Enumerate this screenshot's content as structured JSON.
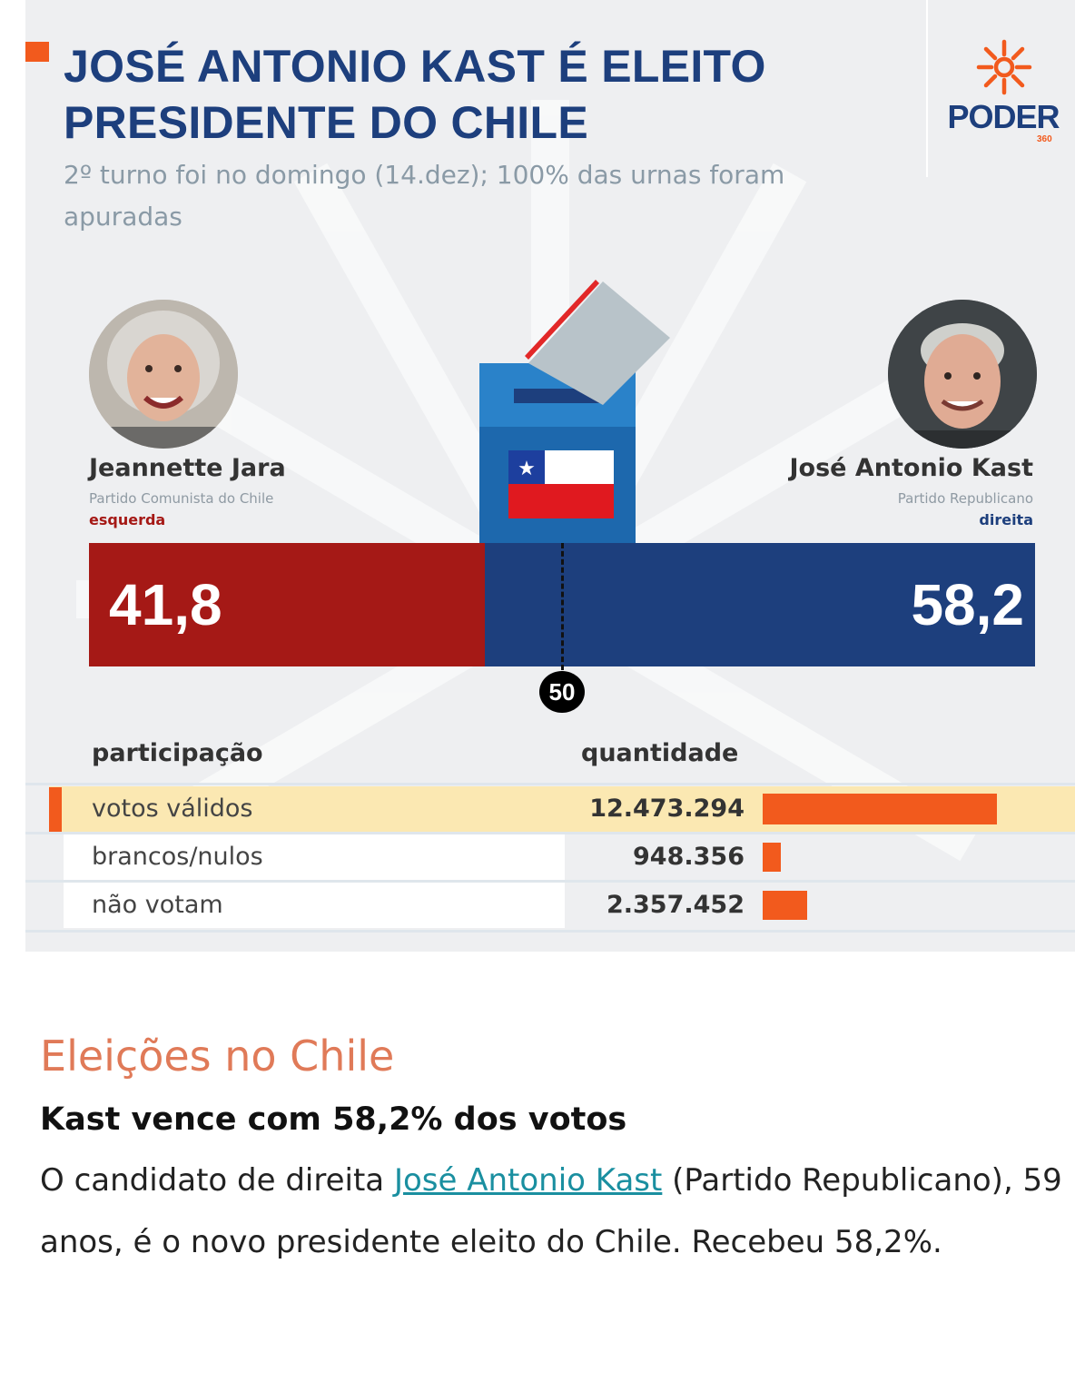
{
  "infographic": {
    "title": "JOSÉ ANTONIO KAST É ELEITO PRESIDENTE DO CHILE",
    "subtitle": "2º turno foi no domingo (14.dez); 100% das urnas foram apuradas",
    "logo": {
      "word": "PODER",
      "sub": "360"
    },
    "colors": {
      "left": "#a51916",
      "right": "#1d3f7d",
      "accent": "#f25a1d",
      "highlight_row": "#fbe8b2"
    }
  },
  "candidates": {
    "left": {
      "name": "Jeannette Jara",
      "party": "Partido Comunista do Chile",
      "side": "esquerda",
      "side_color": "#a51916"
    },
    "right": {
      "name": "José Antonio Kast",
      "party": "Partido Republicano",
      "side": "direita",
      "side_color": "#1d3f7d"
    }
  },
  "chart_data": [
    {
      "type": "bar",
      "orientation": "stacked-horizontal",
      "categories": [
        "Jeannette Jara",
        "José Antonio Kast"
      ],
      "values": [
        41.8,
        58.2
      ],
      "labels": [
        "41,8",
        "58,2"
      ],
      "reference_line": {
        "value": 50,
        "label": "50"
      },
      "xlim": [
        0,
        100
      ]
    },
    {
      "type": "table",
      "columns": [
        "participação",
        "quantidade"
      ],
      "rows": [
        {
          "label": "votos válidos",
          "value": 12473294,
          "display": "12.473.294",
          "highlight": true
        },
        {
          "label": "brancos/nulos",
          "value": 948356,
          "display": "948.356",
          "highlight": false
        },
        {
          "label": "não votam",
          "value": 2357452,
          "display": "2.357.452",
          "highlight": false
        }
      ]
    }
  ],
  "article": {
    "kicker": "Eleições no Chile",
    "headline": "Kast vence com 58,2% dos votos",
    "body_before": "O candidato de direita ",
    "body_link": "José Antonio Kast",
    "body_after": " (Partido Republicano), 59 anos, é o novo presidente eleito do Chile. Recebeu 58,2%."
  }
}
